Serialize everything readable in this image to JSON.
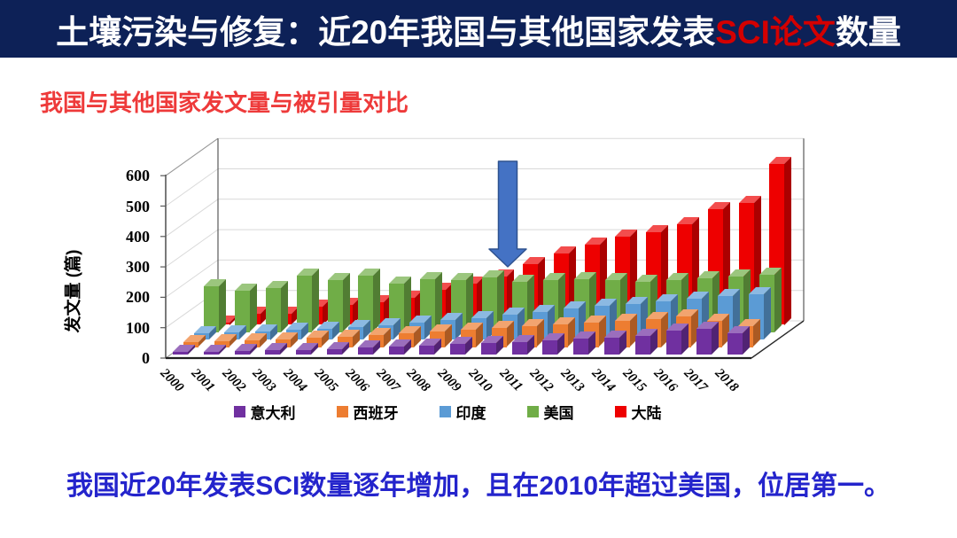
{
  "slide": {
    "title": {
      "prefix": "土壤污染与修复：近20年我国与其他国家发表",
      "highlight": "SCI论文",
      "suffix": "数量"
    },
    "subtitle": "我国与其他国家发文量与被引量对比",
    "caption": "我国近20年发表SCI数量逐年增加，且在2010年超过美国，位居第一。"
  },
  "colors": {
    "title_bar_bg": "#0d2157",
    "title_text": "#ffffff",
    "title_highlight": "#d40000",
    "subtitle_text": "#ee3a3a",
    "caption_text": "#2424cc",
    "arrow_fill": "#4472c4",
    "arrow_stroke": "#2f528f",
    "gridline": "#d9d9d9",
    "axis_line": "#595959"
  },
  "chart_data": {
    "type": "bar",
    "projection": "3d",
    "title": "",
    "xlabel": "",
    "ylabel": "发文量 (篇)",
    "ylim": [
      0,
      600
    ],
    "ytick_interval": 100,
    "yticks": [
      "0",
      "100",
      "200",
      "300",
      "400",
      "500",
      "600"
    ],
    "grid": true,
    "legend_position": "bottom",
    "categories": [
      "2000",
      "2001",
      "2002",
      "2003",
      "2004",
      "2005",
      "2006",
      "2007",
      "2008",
      "2009",
      "2010",
      "2011",
      "2012",
      "2013",
      "2014",
      "2015",
      "2016",
      "2017",
      "2018"
    ],
    "series": [
      {
        "name": "意大利",
        "color": "#7030a0",
        "values": [
          8,
          10,
          12,
          14,
          16,
          18,
          22,
          26,
          30,
          34,
          38,
          42,
          48,
          52,
          56,
          62,
          78,
          85,
          70
        ]
      },
      {
        "name": "西班牙",
        "color": "#ed7d31",
        "values": [
          15,
          18,
          22,
          26,
          30,
          34,
          40,
          46,
          52,
          58,
          62,
          68,
          74,
          80,
          86,
          92,
          100,
          85,
          68
        ]
      },
      {
        "name": "印度",
        "color": "#5b9bd5",
        "values": [
          20,
          24,
          28,
          32,
          36,
          40,
          48,
          56,
          64,
          72,
          82,
          92,
          102,
          110,
          118,
          126,
          136,
          142,
          148
        ]
      },
      {
        "name": "美国",
        "color": "#70ad47",
        "values": [
          150,
          135,
          145,
          185,
          170,
          185,
          160,
          175,
          170,
          180,
          165,
          170,
          175,
          170,
          165,
          170,
          178,
          182,
          190
        ]
      },
      {
        "name": "大陆",
        "color": "#ee0000",
        "values": [
          8,
          35,
          35,
          60,
          65,
          75,
          90,
          115,
          135,
          160,
          200,
          235,
          265,
          290,
          305,
          330,
          380,
          400,
          530
        ]
      }
    ],
    "annotation": {
      "type": "down-arrow",
      "target_category": "2010",
      "meaning": "year China mainland surpassed USA"
    }
  }
}
